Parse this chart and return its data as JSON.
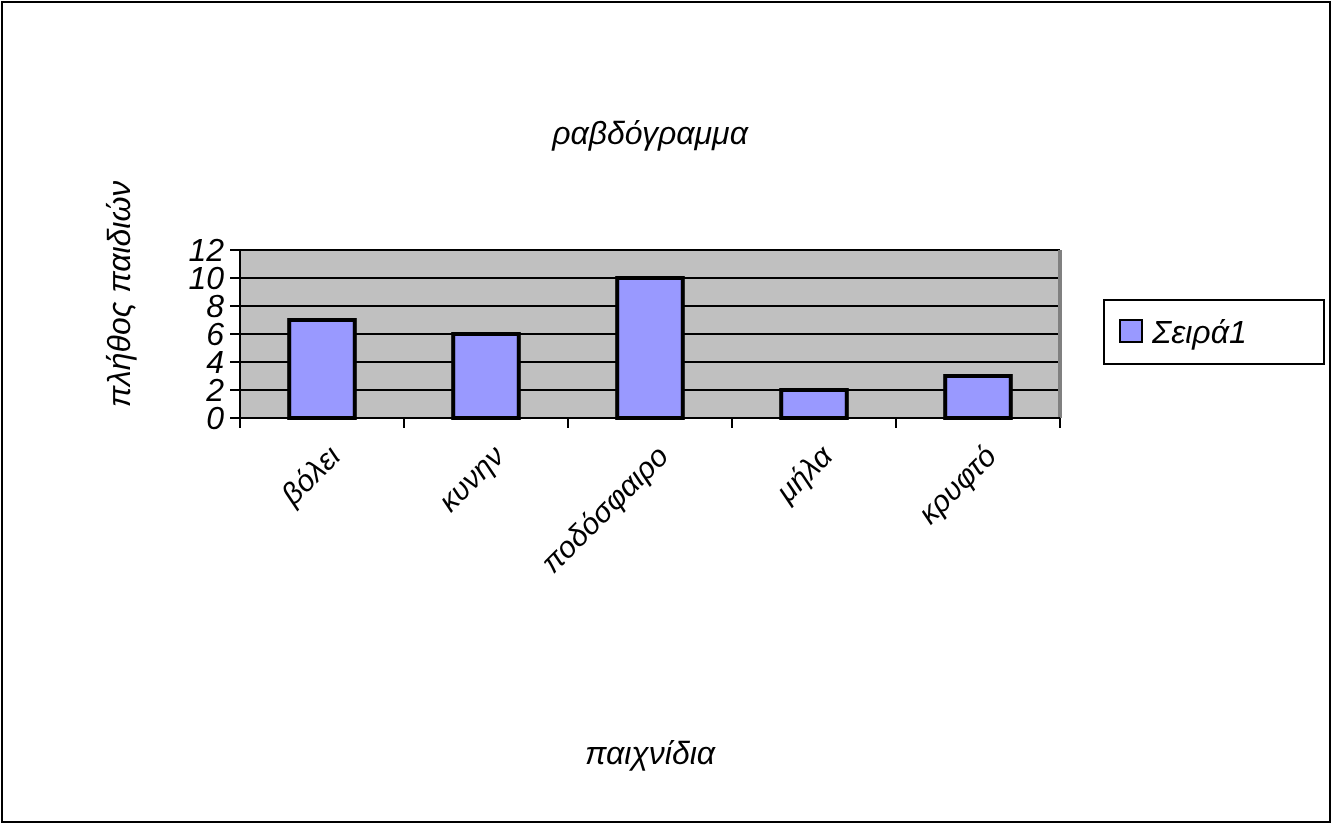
{
  "chart_data": {
    "type": "bar",
    "title": "ραβδόγραμμα",
    "xlabel": "παιχνίδια",
    "ylabel": "πλήθος παιδιών",
    "categories": [
      "βόλει",
      "κυνην",
      "ποδόσφαιρο",
      "μήλα",
      "κρυφτό"
    ],
    "series": [
      {
        "name": "Σειρά1",
        "color": "#9999ff",
        "values": [
          7,
          6,
          10,
          2,
          3
        ]
      }
    ],
    "ylim": [
      0,
      12
    ],
    "yticks": [
      0,
      2,
      4,
      6,
      8,
      10,
      12
    ],
    "grid": "y",
    "legend": "right"
  }
}
